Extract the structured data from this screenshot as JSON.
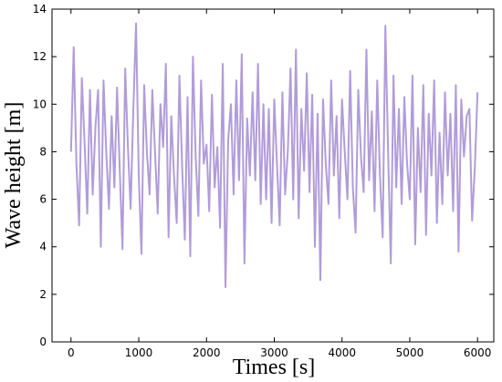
{
  "chart_data": {
    "type": "line",
    "xlabel": "Times [s]",
    "ylabel": "Wave height [m]",
    "x": [
      0,
      40,
      80,
      120,
      160,
      200,
      240,
      280,
      320,
      360,
      400,
      440,
      480,
      520,
      560,
      600,
      640,
      680,
      720,
      760,
      800,
      840,
      880,
      920,
      960,
      1000,
      1040,
      1080,
      1120,
      1160,
      1200,
      1240,
      1280,
      1320,
      1360,
      1400,
      1440,
      1480,
      1520,
      1560,
      1600,
      1640,
      1680,
      1720,
      1760,
      1800,
      1840,
      1880,
      1920,
      1960,
      2000,
      2040,
      2080,
      2120,
      2160,
      2200,
      2240,
      2280,
      2320,
      2360,
      2400,
      2440,
      2480,
      2520,
      2560,
      2600,
      2640,
      2680,
      2720,
      2760,
      2800,
      2840,
      2880,
      2920,
      2960,
      3000,
      3040,
      3080,
      3120,
      3160,
      3200,
      3240,
      3280,
      3320,
      3360,
      3400,
      3440,
      3480,
      3520,
      3560,
      3600,
      3640,
      3680,
      3720,
      3760,
      3800,
      3840,
      3880,
      3920,
      3960,
      4000,
      4040,
      4080,
      4120,
      4160,
      4200,
      4240,
      4280,
      4320,
      4360,
      4400,
      4440,
      4480,
      4520,
      4560,
      4600,
      4640,
      4680,
      4720,
      4760,
      4800,
      4840,
      4880,
      4920,
      4960,
      5000,
      5040,
      5080,
      5120,
      5160,
      5200,
      5240,
      5280,
      5320,
      5360,
      5400,
      5440,
      5480,
      5520,
      5560,
      5600,
      5640,
      5680,
      5720,
      5760,
      5800,
      5840,
      5880,
      5920,
      5960,
      6000
    ],
    "series": [
      {
        "color": "#b19cd9",
        "values": [
          8.0,
          12.4,
          7.5,
          4.9,
          11.1,
          8.4,
          5.4,
          10.6,
          6.2,
          9.0,
          10.6,
          4.0,
          11.0,
          8.0,
          5.6,
          9.5,
          6.5,
          10.7,
          7.2,
          3.9,
          11.5,
          8.2,
          5.6,
          9.8,
          13.4,
          7.0,
          3.7,
          10.8,
          8.0,
          6.2,
          10.6,
          8.0,
          5.4,
          10.0,
          8.2,
          11.7,
          4.4,
          9.5,
          7.0,
          5.0,
          11.2,
          7.4,
          4.3,
          10.3,
          3.6,
          12.0,
          7.8,
          5.3,
          11.0,
          7.5,
          8.3,
          5.5,
          10.4,
          6.5,
          8.2,
          4.8,
          11.7,
          2.3,
          8.5,
          10.0,
          6.2,
          11.0,
          6.8,
          12.1,
          3.3,
          9.4,
          7.0,
          10.5,
          6.8,
          11.7,
          5.8,
          10.0,
          6.0,
          9.8,
          5.0,
          10.2,
          7.5,
          4.9,
          10.5,
          6.2,
          8.0,
          11.5,
          6.0,
          12.3,
          5.2,
          9.8,
          7.2,
          11.3,
          6.3,
          10.4,
          4.0,
          9.6,
          2.6,
          10.2,
          7.5,
          5.8,
          11.0,
          7.0,
          9.5,
          5.2,
          10.2,
          8.0,
          6.0,
          11.4,
          6.5,
          4.6,
          10.6,
          7.8,
          6.3,
          12.3,
          6.8,
          9.7,
          5.5,
          11.0,
          7.0,
          4.4,
          13.3,
          8.0,
          3.3,
          11.2,
          6.5,
          9.8,
          5.8,
          10.3,
          7.5,
          6.0,
          11.2,
          4.1,
          9.0,
          6.3,
          10.8,
          4.5,
          9.6,
          7.0,
          11.0,
          5.0,
          8.8,
          5.8,
          10.5,
          7.0,
          9.6,
          5.5,
          10.8,
          3.8,
          10.2,
          7.8,
          9.5,
          9.8,
          5.1,
          7.3,
          10.5
        ]
      }
    ],
    "xlim": [
      -280,
      6240
    ],
    "xticks": [
      0,
      1000,
      2000,
      3000,
      4000,
      5000,
      6000
    ],
    "ylim": [
      0,
      14
    ],
    "yticks": [
      0,
      2,
      4,
      6,
      8,
      10,
      12,
      14
    ]
  }
}
